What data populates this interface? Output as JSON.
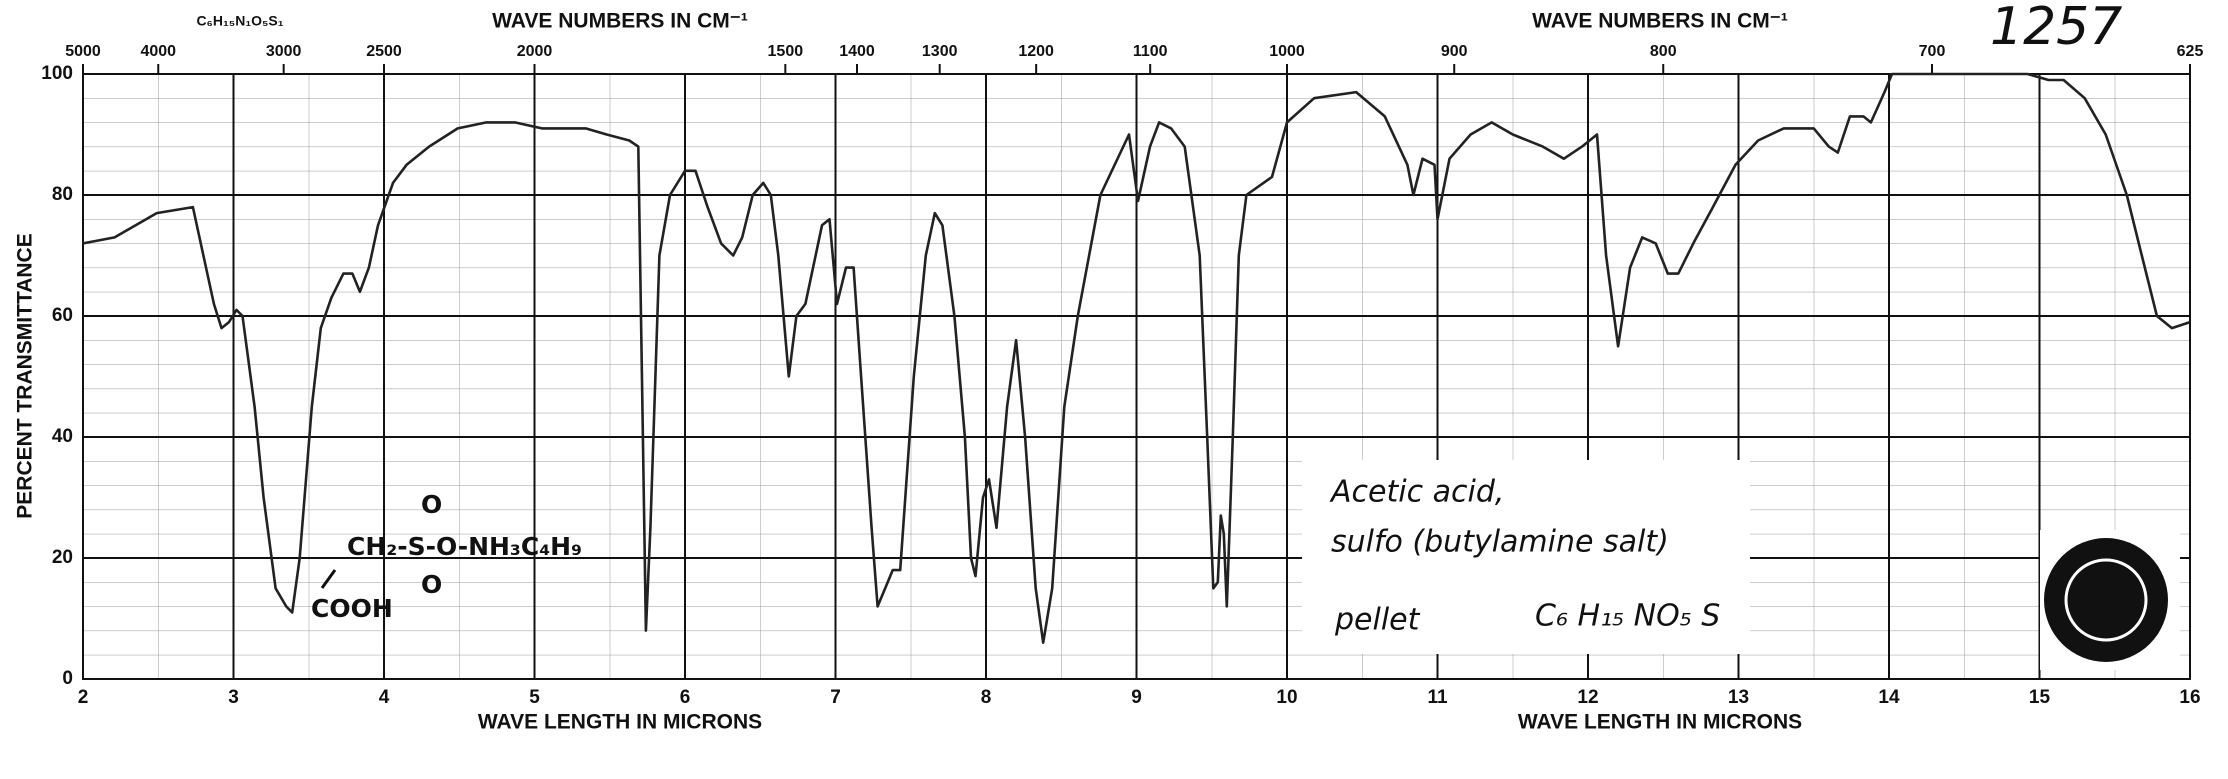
{
  "chart_data": {
    "type": "line",
    "formula_header": "C₆H₁₅N₁O₅S₁",
    "x2label": "WAVE NUMBERS IN CM⁻¹",
    "xlabel": "WAVE LENGTH IN MICRONS",
    "ylabel": "PERCENT TRANSMITTANCE",
    "annotations": [
      "Acetic acid,",
      "sulfo (butylamine salt)",
      "pellet",
      "C₆ H₁₅ NO₅ S",
      "1257",
      "CH₂-S-O-NH₃C₄H₉",
      "COOH",
      "O",
      "O"
    ],
    "x": [
      2.0,
      2.21,
      2.49,
      2.73,
      2.8,
      2.87,
      2.92,
      2.97,
      3.02,
      3.06,
      3.14,
      3.2,
      3.28,
      3.35,
      3.39,
      3.44,
      3.52,
      3.58,
      3.65,
      3.73,
      3.79,
      3.84,
      3.9,
      3.96,
      4.06,
      4.15,
      4.3,
      4.49,
      4.68,
      4.87,
      5.05,
      5.34,
      5.48,
      5.63,
      5.69,
      5.72,
      5.74,
      5.77,
      5.83,
      5.9,
      6.0,
      6.07,
      6.15,
      6.24,
      6.32,
      6.38,
      6.45,
      6.52,
      6.57,
      6.62,
      6.69,
      6.74,
      6.8,
      6.91,
      6.96,
      7.01,
      7.07,
      7.12,
      7.17,
      7.24,
      7.28,
      7.33,
      7.38,
      7.43,
      7.52,
      7.6,
      7.66,
      7.71,
      7.79,
      7.86,
      7.9,
      7.93,
      7.98,
      8.02,
      8.07,
      8.14,
      8.2,
      8.26,
      8.33,
      8.38,
      8.44,
      8.52,
      8.61,
      8.76,
      8.95,
      9.01,
      9.09,
      9.15,
      9.23,
      9.32,
      9.42,
      9.47,
      9.51,
      9.54,
      9.56,
      9.58,
      9.6,
      9.64,
      9.68,
      9.73,
      9.9,
      10.0,
      10.18,
      10.46,
      10.65,
      10.8,
      10.84,
      10.9,
      10.98,
      11.0,
      11.08,
      11.22,
      11.36,
      11.5,
      11.7,
      11.84,
      11.96,
      12.06,
      12.12,
      12.2,
      12.28,
      12.36,
      12.45,
      12.53,
      12.6,
      12.7,
      12.83,
      12.98,
      13.13,
      13.3,
      13.5,
      13.6,
      13.66,
      13.74,
      13.83,
      13.88,
      13.97,
      14.02,
      14.54,
      14.92,
      15.06,
      15.16,
      15.3,
      15.44,
      15.58,
      15.68,
      15.78,
      15.88,
      16.0
    ],
    "values": [
      72,
      73,
      77,
      78,
      70,
      62,
      58,
      59,
      61,
      60,
      45,
      30,
      15,
      12,
      11,
      20,
      45,
      58,
      63,
      67,
      67,
      64,
      68,
      75,
      82,
      85,
      88,
      91,
      92,
      92,
      91,
      91,
      90,
      89,
      88,
      40,
      8,
      25,
      70,
      80,
      84,
      84,
      78,
      72,
      70,
      73,
      80,
      82,
      80,
      70,
      50,
      60,
      62,
      75,
      76,
      62,
      68,
      68,
      50,
      25,
      12,
      15,
      18,
      18,
      50,
      70,
      77,
      75,
      60,
      40,
      20,
      17,
      30,
      33,
      25,
      45,
      56,
      40,
      15,
      6,
      15,
      45,
      60,
      80,
      90,
      79,
      88,
      92,
      91,
      88,
      70,
      40,
      15,
      16,
      27,
      24,
      12,
      40,
      70,
      80,
      83,
      92,
      96,
      97,
      93,
      85,
      80,
      86,
      85,
      76,
      86,
      90,
      92,
      90,
      88,
      86,
      88,
      90,
      70,
      55,
      68,
      73,
      72,
      67,
      67,
      72,
      78,
      85,
      89,
      91,
      91,
      88,
      87,
      93,
      93,
      92,
      97,
      100,
      100,
      100,
      99,
      99,
      96,
      90,
      80,
      70,
      60,
      58,
      59
    ],
    "color": "#222222",
    "xlim": [
      2,
      16
    ],
    "xticks": [
      2,
      3,
      4,
      5,
      6,
      7,
      8,
      9,
      10,
      11,
      12,
      13,
      14,
      15,
      16
    ],
    "x2ticks": [
      5000,
      4000,
      3000,
      2500,
      2000,
      1500,
      1400,
      1300,
      1200,
      1100,
      1000,
      900,
      800,
      700,
      625
    ],
    "ylim": [
      0,
      100
    ],
    "yticks": [
      0,
      20,
      40,
      60,
      80,
      100
    ],
    "grid": true
  }
}
